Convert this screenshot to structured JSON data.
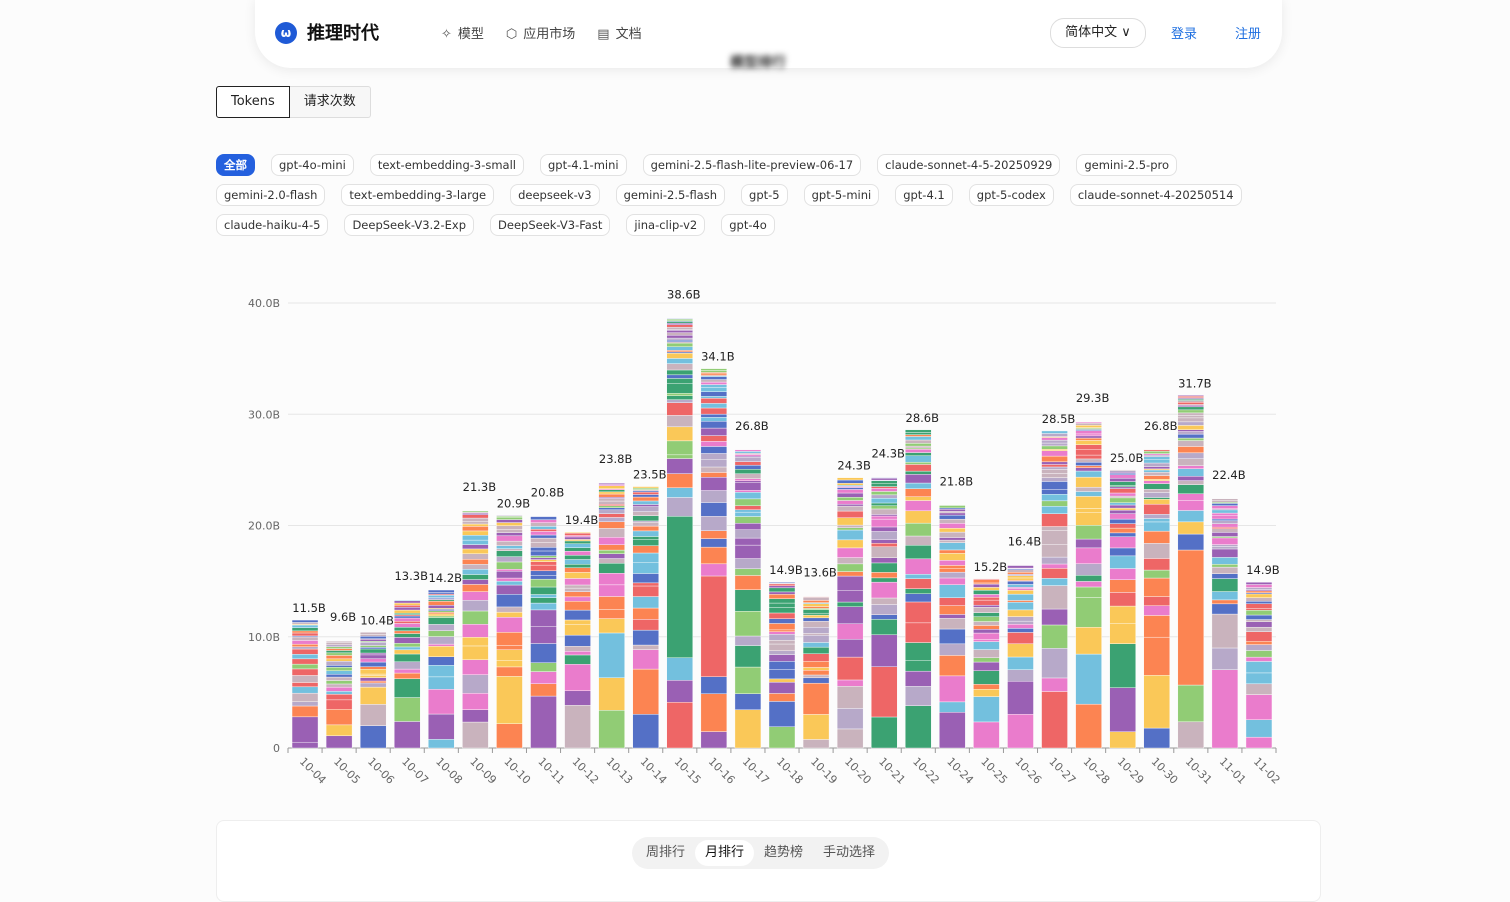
{
  "header": {
    "logo_glyph": "ω",
    "brand": "推理时代",
    "nav": [
      {
        "icon": "✧",
        "label": "模型"
      },
      {
        "icon": "⬡",
        "label": "应用市场"
      },
      {
        "icon": "▤",
        "label": "文档"
      }
    ],
    "language": "简体中文 ∨",
    "login": "登录",
    "register": "注册"
  },
  "section_title": "模型排行",
  "metric_tabs": {
    "tokens": "Tokens",
    "requests": "请求次数"
  },
  "filters": [
    "全部",
    "gpt-4o-mini",
    "text-embedding-3-small",
    "gpt-4.1-mini",
    "gemini-2.5-flash-lite-preview-06-17",
    "claude-sonnet-4-5-20250929",
    "gemini-2.5-pro",
    "gemini-2.0-flash",
    "text-embedding-3-large",
    "deepseek-v3",
    "gemini-2.5-flash",
    "gpt-5",
    "gpt-5-mini",
    "gpt-4.1",
    "gpt-5-codex",
    "claude-sonnet-4-20250514",
    "claude-haiku-4-5",
    "DeepSeek-V3.2-Exp",
    "DeepSeek-V3-Fast",
    "jina-clip-v2",
    "gpt-4o"
  ],
  "chart_data": {
    "type": "bar",
    "stacked": true,
    "categories": [
      "10-04",
      "10-05",
      "10-06",
      "10-07",
      "10-08",
      "10-09",
      "10-10",
      "10-11",
      "10-12",
      "10-13",
      "10-14",
      "10-15",
      "10-16",
      "10-17",
      "10-18",
      "10-19",
      "10-20",
      "10-21",
      "10-22",
      "10-24",
      "10-25",
      "10-26",
      "10-27",
      "10-28",
      "10-29",
      "10-30",
      "10-31",
      "11-01",
      "11-02"
    ],
    "totals": [
      11.5,
      9.6,
      10.4,
      13.3,
      14.2,
      21.3,
      20.9,
      20.8,
      19.4,
      23.8,
      23.5,
      38.6,
      34.1,
      26.8,
      14.9,
      13.6,
      24.3,
      24.3,
      28.6,
      21.8,
      15.2,
      16.4,
      28.5,
      29.3,
      25.0,
      26.8,
      31.7,
      22.4,
      14.9
    ],
    "total_labels": [
      "11.5B",
      "9.6B",
      "10.4B",
      "13.3B",
      "14.2B",
      "21.3B",
      "20.9B",
      "20.8B",
      "19.4B",
      "23.8B",
      "23.5B",
      "38.6B",
      "34.1B",
      "26.8B",
      "14.9B",
      "13.6B",
      "24.3B",
      "24.3B",
      "28.6B",
      "21.8B",
      "15.2B",
      "16.4B",
      "28.5B",
      "29.3B",
      "25.0B",
      "26.8B",
      "31.7B",
      "22.4B",
      "14.9B"
    ],
    "unit": "B",
    "ylim": [
      0,
      40
    ],
    "yticks": [
      "0",
      "10.0B",
      "20.0B",
      "30.0B",
      "40.0B"
    ],
    "grid": true,
    "palette": [
      "#5470c6",
      "#91cc75",
      "#fac858",
      "#ee6666",
      "#73c0de",
      "#3ba272",
      "#fc8452",
      "#9a60b4",
      "#ea7ccc",
      "#c9b3bd",
      "#b7a9c9"
    ]
  },
  "ranking_tabs": [
    {
      "label": "周排行",
      "active": false
    },
    {
      "label": "月排行",
      "active": true
    },
    {
      "label": "趋势榜",
      "active": false
    },
    {
      "label": "手动选择",
      "active": false
    }
  ]
}
